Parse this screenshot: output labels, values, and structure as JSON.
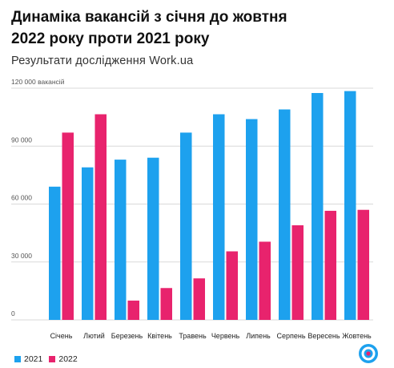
{
  "title_lines": [
    "Динаміка вакансій з січня до жовтня",
    "2022 року проти 2021 року"
  ],
  "subtitle": "Результати дослідження Work.ua",
  "colors": {
    "s2021": "#1da1ee",
    "s2022": "#e8236d",
    "grid": "#d9d9d9",
    "axis_text": "#555555"
  },
  "chart_data": {
    "type": "bar",
    "title": "Динаміка вакансій з січня до жовтня 2022 року проти 2021 року",
    "subtitle": "Результати дослідження Work.ua",
    "categories": [
      "Січень",
      "Лютий",
      "Березень",
      "Квітень",
      "Травень",
      "Червень",
      "Липень",
      "Серпень",
      "Вересень",
      "Жовтень"
    ],
    "series": [
      {
        "name": "2021",
        "values": [
          69000,
          79000,
          83000,
          84000,
          97000,
          106500,
          104000,
          109000,
          117500,
          118500
        ]
      },
      {
        "name": "2022",
        "values": [
          97000,
          106500,
          10000,
          16500,
          21500,
          35500,
          40500,
          49000,
          56500,
          57000
        ]
      }
    ],
    "ylim": [
      0,
      120000
    ],
    "yticks": [
      0,
      30000,
      60000,
      90000,
      120000
    ],
    "ytick_labels": [
      "0",
      "30 000",
      "60 000",
      "90 000",
      "120 000 вакансій"
    ],
    "xlabel": "",
    "ylabel": "",
    "grid": true,
    "legend_position": "bottom-left"
  },
  "legend": [
    {
      "label": "2021",
      "color": "#1da1ee"
    },
    {
      "label": "2022",
      "color": "#e8236d"
    }
  ],
  "logo_icon": "workua-logo-icon"
}
